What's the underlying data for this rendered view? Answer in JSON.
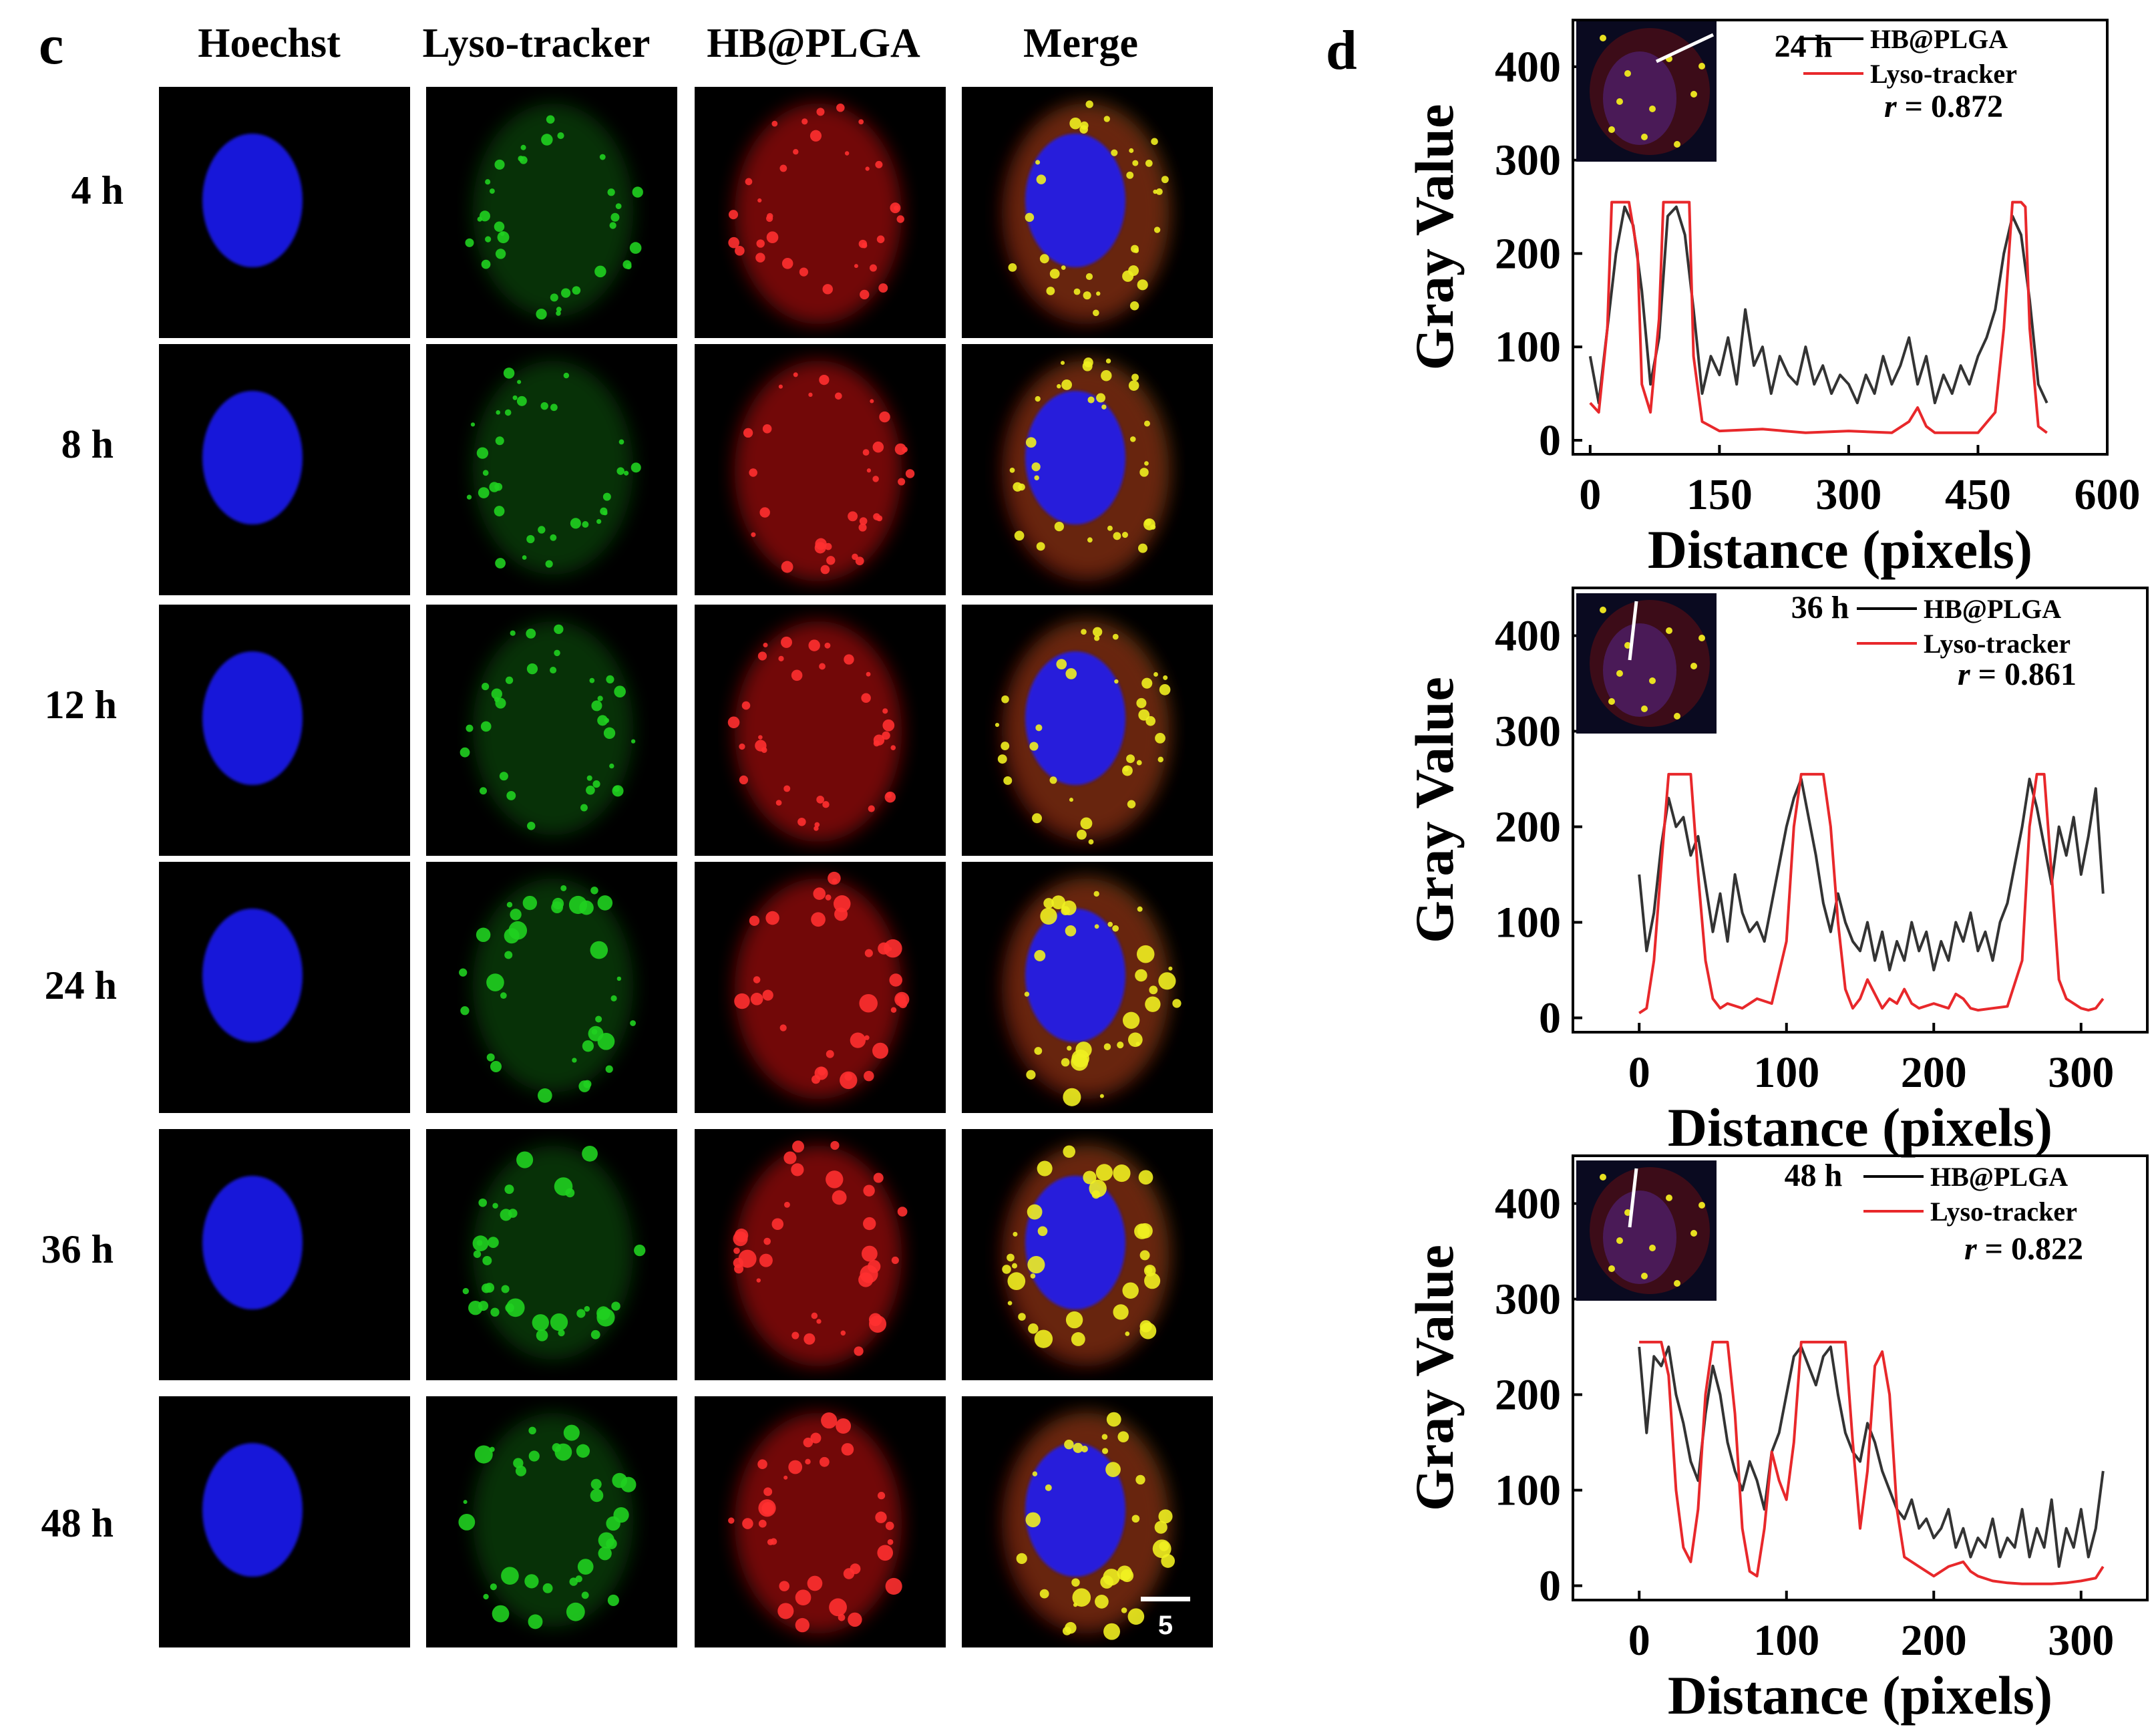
{
  "panel_c": {
    "letter": "c",
    "columns": [
      "Hoechst",
      "Lyso-tracker",
      "HB@PLGA",
      "Merge"
    ],
    "rows": [
      "4 h",
      "8 h",
      "12 h",
      "24 h",
      "36 h",
      "48 h"
    ],
    "scale_bar": "5 μm"
  },
  "panel_d": {
    "letter": "d"
  },
  "colors": {
    "hb_plga": "#000000",
    "lyso_tracker": "#e8282b",
    "hoechst": "#1a1aff",
    "lyso_green": "#20d020",
    "hb_red": "#d01818"
  },
  "chart_data": [
    {
      "type": "line",
      "time_label": "24 h",
      "xlabel": "Distance (pixels)",
      "ylabel": "Gray Value",
      "xlim": [
        -20,
        600
      ],
      "ylim": [
        -15,
        450
      ],
      "xticks": [
        0,
        150,
        300,
        450,
        600
      ],
      "yticks": [
        0,
        100,
        200,
        300,
        400
      ],
      "r_label": "r",
      "r_value": "= 0.872",
      "legend": [
        "HB@PLGA",
        "Lyso-tracker"
      ],
      "series": [
        {
          "name": "HB@PLGA",
          "x": [
            0,
            10,
            20,
            30,
            40,
            50,
            60,
            70,
            80,
            90,
            100,
            110,
            120,
            130,
            140,
            150,
            160,
            170,
            180,
            190,
            200,
            210,
            220,
            230,
            240,
            250,
            260,
            270,
            280,
            290,
            300,
            310,
            320,
            330,
            340,
            350,
            360,
            370,
            380,
            390,
            400,
            410,
            420,
            430,
            440,
            450,
            460,
            470,
            480,
            490,
            500,
            510,
            520,
            530
          ],
          "y": [
            90,
            40,
            120,
            200,
            250,
            230,
            160,
            60,
            110,
            240,
            250,
            220,
            140,
            50,
            90,
            70,
            110,
            60,
            140,
            80,
            100,
            50,
            90,
            70,
            60,
            100,
            60,
            80,
            50,
            70,
            60,
            40,
            70,
            50,
            90,
            60,
            80,
            110,
            60,
            90,
            40,
            70,
            50,
            80,
            60,
            90,
            110,
            140,
            200,
            240,
            220,
            150,
            60,
            40
          ]
        },
        {
          "name": "Lyso-tracker",
          "x": [
            0,
            10,
            20,
            25,
            35,
            45,
            55,
            60,
            70,
            80,
            85,
            95,
            105,
            115,
            120,
            130,
            140,
            150,
            200,
            250,
            300,
            350,
            370,
            380,
            390,
            400,
            450,
            470,
            480,
            490,
            500,
            505,
            510,
            520,
            530
          ],
          "y": [
            40,
            30,
            120,
            255,
            255,
            255,
            200,
            60,
            30,
            130,
            255,
            255,
            255,
            255,
            90,
            20,
            15,
            10,
            12,
            8,
            10,
            8,
            20,
            35,
            15,
            8,
            8,
            30,
            120,
            255,
            255,
            250,
            120,
            15,
            8
          ]
        }
      ]
    },
    {
      "type": "line",
      "time_label": "36 h",
      "xlabel": "Distance (pixels)",
      "ylabel": "Gray Value",
      "xlim": [
        -45,
        345
      ],
      "ylim": [
        -15,
        450
      ],
      "xticks": [
        0,
        100,
        200,
        300
      ],
      "yticks": [
        0,
        100,
        200,
        300,
        400
      ],
      "r_label": "r",
      "r_value": "= 0.861",
      "legend": [
        "HB@PLGA",
        "Lyso-tracker"
      ],
      "series": [
        {
          "name": "HB@PLGA",
          "x": [
            0,
            5,
            10,
            15,
            20,
            25,
            30,
            35,
            40,
            45,
            50,
            55,
            60,
            65,
            70,
            75,
            80,
            85,
            90,
            95,
            100,
            105,
            110,
            115,
            120,
            125,
            130,
            135,
            140,
            145,
            150,
            155,
            160,
            165,
            170,
            175,
            180,
            185,
            190,
            195,
            200,
            205,
            210,
            215,
            220,
            225,
            230,
            235,
            240,
            245,
            250,
            255,
            260,
            265,
            270,
            275,
            280,
            285,
            290,
            295,
            300,
            305,
            310,
            315
          ],
          "y": [
            150,
            70,
            110,
            180,
            230,
            200,
            210,
            170,
            190,
            140,
            90,
            130,
            80,
            150,
            110,
            90,
            100,
            80,
            120,
            160,
            200,
            230,
            250,
            210,
            170,
            120,
            90,
            130,
            100,
            80,
            70,
            100,
            60,
            90,
            50,
            80,
            60,
            100,
            70,
            90,
            50,
            80,
            60,
            100,
            80,
            110,
            70,
            90,
            60,
            100,
            120,
            160,
            200,
            250,
            220,
            180,
            140,
            200,
            170,
            210,
            150,
            190,
            240,
            130
          ]
        },
        {
          "name": "Lyso-tracker",
          "x": [
            0,
            5,
            10,
            15,
            20,
            25,
            30,
            35,
            40,
            45,
            50,
            55,
            60,
            70,
            80,
            90,
            100,
            105,
            110,
            115,
            125,
            130,
            135,
            140,
            145,
            150,
            155,
            160,
            165,
            170,
            175,
            180,
            185,
            190,
            200,
            210,
            215,
            220,
            225,
            230,
            240,
            250,
            260,
            265,
            270,
            275,
            280,
            285,
            290,
            295,
            300,
            305,
            310,
            315
          ],
          "y": [
            5,
            10,
            60,
            160,
            255,
            255,
            255,
            255,
            150,
            60,
            20,
            10,
            15,
            10,
            20,
            15,
            80,
            200,
            255,
            255,
            255,
            200,
            100,
            30,
            10,
            20,
            40,
            25,
            10,
            20,
            15,
            30,
            15,
            10,
            15,
            10,
            25,
            20,
            10,
            8,
            10,
            12,
            60,
            200,
            255,
            255,
            150,
            40,
            20,
            15,
            10,
            8,
            10,
            20
          ]
        }
      ]
    },
    {
      "type": "line",
      "time_label": "48 h",
      "xlabel": "Distance (pixels)",
      "ylabel": "Gray Value",
      "xlim": [
        -45,
        345
      ],
      "ylim": [
        -15,
        450
      ],
      "xticks": [
        0,
        100,
        200,
        300
      ],
      "yticks": [
        0,
        100,
        200,
        300,
        400
      ],
      "r_label": "r",
      "r_value": "= 0.822",
      "legend": [
        "HB@PLGA",
        "Lyso-tracker"
      ],
      "series": [
        {
          "name": "HB@PLGA",
          "x": [
            0,
            5,
            10,
            15,
            20,
            25,
            30,
            35,
            40,
            45,
            50,
            55,
            60,
            65,
            70,
            75,
            80,
            85,
            90,
            95,
            100,
            105,
            110,
            115,
            120,
            125,
            130,
            135,
            140,
            145,
            150,
            155,
            160,
            165,
            170,
            175,
            180,
            185,
            190,
            195,
            200,
            205,
            210,
            215,
            220,
            225,
            230,
            235,
            240,
            245,
            250,
            255,
            260,
            265,
            270,
            275,
            280,
            285,
            290,
            295,
            300,
            305,
            310,
            315
          ],
          "y": [
            250,
            160,
            240,
            230,
            250,
            200,
            170,
            130,
            110,
            180,
            230,
            200,
            150,
            120,
            100,
            130,
            110,
            80,
            140,
            160,
            200,
            240,
            250,
            230,
            210,
            240,
            250,
            200,
            160,
            140,
            130,
            170,
            150,
            120,
            100,
            80,
            70,
            90,
            60,
            70,
            50,
            60,
            80,
            40,
            60,
            30,
            50,
            40,
            70,
            30,
            50,
            40,
            80,
            30,
            60,
            40,
            90,
            20,
            60,
            40,
            80,
            30,
            60,
            120
          ]
        },
        {
          "name": "Lyso-tracker",
          "x": [
            0,
            5,
            10,
            15,
            20,
            25,
            30,
            35,
            40,
            45,
            50,
            55,
            60,
            65,
            70,
            75,
            80,
            85,
            90,
            95,
            100,
            105,
            110,
            115,
            120,
            130,
            140,
            145,
            150,
            155,
            160,
            165,
            170,
            175,
            180,
            190,
            200,
            210,
            220,
            225,
            230,
            240,
            250,
            260,
            270,
            280,
            290,
            300,
            310,
            315
          ],
          "y": [
            255,
            255,
            255,
            255,
            220,
            100,
            40,
            25,
            80,
            200,
            255,
            255,
            255,
            180,
            60,
            15,
            10,
            60,
            140,
            110,
            90,
            150,
            255,
            255,
            255,
            255,
            255,
            150,
            60,
            120,
            230,
            245,
            200,
            80,
            30,
            20,
            10,
            20,
            25,
            15,
            10,
            5,
            3,
            2,
            2,
            2,
            3,
            5,
            8,
            20
          ]
        }
      ]
    }
  ]
}
